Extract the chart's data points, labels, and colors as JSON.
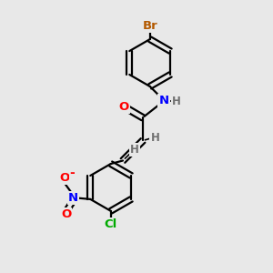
{
  "background_color": "#e8e8e8",
  "bond_color": "#000000",
  "atom_colors": {
    "Br": "#b35900",
    "N": "#0000ff",
    "O": "#ff0000",
    "Cl": "#00aa00",
    "H": "#707070",
    "C": "#000000"
  },
  "figsize": [
    3.0,
    3.0
  ],
  "dpi": 100,
  "xlim": [
    0,
    10
  ],
  "ylim": [
    0,
    10
  ]
}
